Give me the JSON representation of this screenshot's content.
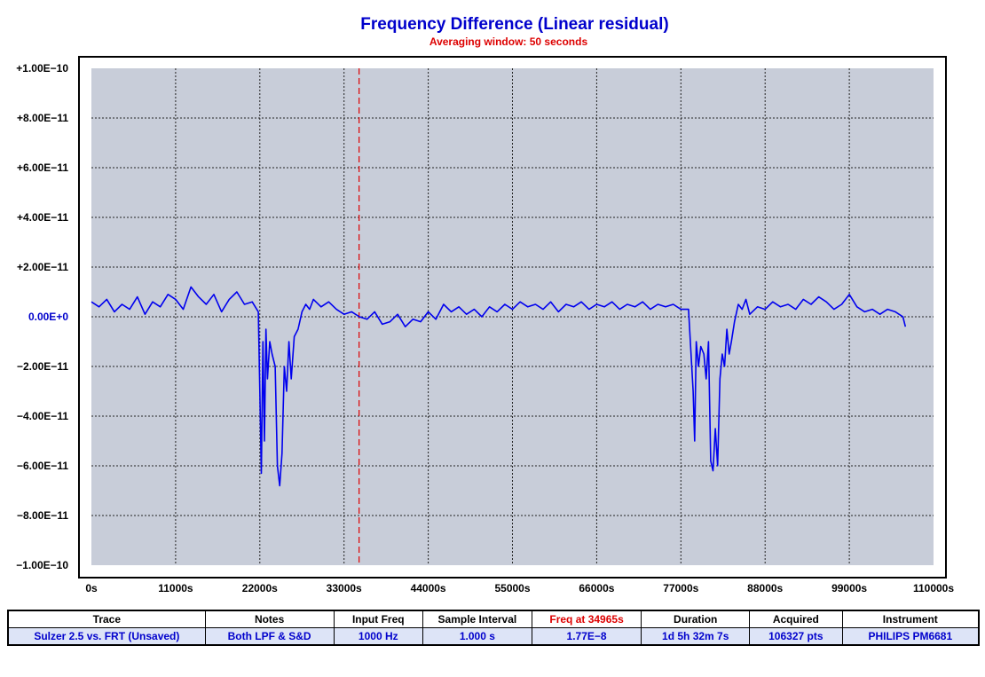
{
  "chart_data": {
    "type": "line",
    "title": "Frequency Difference (Linear residual)",
    "subtitle": "Averaging window: 50 seconds",
    "xlim": [
      0,
      110000
    ],
    "ylim": [
      -1e-10,
      1e-10
    ],
    "x_ticks": [
      0,
      11000,
      22000,
      33000,
      44000,
      55000,
      66000,
      77000,
      88000,
      99000,
      110000
    ],
    "x_tick_labels": [
      "0s",
      "11000s",
      "22000s",
      "33000s",
      "44000s",
      "55000s",
      "66000s",
      "77000s",
      "88000s",
      "99000s",
      "110000s"
    ],
    "y_ticks": [
      1e-10,
      8e-11,
      6e-11,
      4e-11,
      2e-11,
      0,
      -2e-11,
      -4e-11,
      -6e-11,
      -8e-11,
      -1e-10
    ],
    "y_tick_labels": [
      "+1.00E−10",
      "+8.00E−11",
      "+6.00E−11",
      "+4.00E−11",
      "+2.00E−11",
      "0.00E+0",
      "−2.00E−11",
      "−4.00E−11",
      "−6.00E−11",
      "−8.00E−11",
      "−1.00E−10"
    ],
    "grid": true,
    "cursor_x": 34965,
    "series": [
      {
        "color": "#0000ee",
        "x": [
          0,
          1000,
          2000,
          3000,
          4000,
          5000,
          6000,
          7000,
          8000,
          9000,
          10000,
          11000,
          12000,
          13000,
          14000,
          15000,
          16000,
          17000,
          18000,
          19000,
          20000,
          21000,
          21800,
          22000,
          22200,
          22400,
          22600,
          22800,
          23000,
          23300,
          23600,
          24000,
          24300,
          24600,
          24900,
          25200,
          25500,
          25800,
          26100,
          26500,
          27000,
          27500,
          28000,
          28500,
          29000,
          30000,
          31000,
          32000,
          33000,
          34000,
          35000,
          36000,
          37000,
          38000,
          39000,
          40000,
          41000,
          42000,
          43000,
          44000,
          45000,
          46000,
          47000,
          48000,
          49000,
          50000,
          51000,
          52000,
          53000,
          54000,
          55000,
          56000,
          57000,
          58000,
          59000,
          60000,
          61000,
          62000,
          63000,
          64000,
          65000,
          66000,
          67000,
          68000,
          69000,
          70000,
          71000,
          72000,
          73000,
          74000,
          75000,
          76000,
          77000,
          78000,
          78600,
          78800,
          79000,
          79300,
          79600,
          80000,
          80300,
          80600,
          80900,
          81200,
          81500,
          81800,
          82100,
          82400,
          82700,
          83000,
          83300,
          83600,
          84000,
          84500,
          85000,
          85500,
          86000,
          87000,
          88000,
          89000,
          90000,
          91000,
          92000,
          93000,
          94000,
          95000,
          96000,
          97000,
          98000,
          99000,
          100000,
          101000,
          102000,
          103000,
          104000,
          105000,
          106000,
          106327
        ],
        "values": [
          6e-12,
          4e-12,
          7e-12,
          2e-12,
          5e-12,
          3e-12,
          8e-12,
          1e-12,
          6e-12,
          4e-12,
          9e-12,
          7e-12,
          3e-12,
          1.2e-11,
          8e-12,
          5e-12,
          9e-12,
          2e-12,
          7e-12,
          1e-11,
          5e-12,
          6e-12,
          2e-12,
          -3e-11,
          -6.3e-11,
          -1e-11,
          -5e-11,
          -5e-12,
          -2.5e-11,
          -1e-11,
          -1.5e-11,
          -2e-11,
          -6e-11,
          -6.8e-11,
          -5.5e-11,
          -2e-11,
          -3e-11,
          -1e-11,
          -2.5e-11,
          -8e-12,
          -5e-12,
          2e-12,
          5e-12,
          3e-12,
          7e-12,
          4e-12,
          6e-12,
          3e-12,
          1e-12,
          2e-12,
          0.0,
          -1e-12,
          2e-12,
          -3e-12,
          -2e-12,
          1e-12,
          -4e-12,
          -1e-12,
          -2e-12,
          2e-12,
          -1e-12,
          5e-12,
          2e-12,
          4e-12,
          1e-12,
          3e-12,
          0.0,
          4e-12,
          2e-12,
          5e-12,
          3e-12,
          6e-12,
          4e-12,
          5e-12,
          3e-12,
          6e-12,
          2e-12,
          5e-12,
          4e-12,
          6e-12,
          3e-12,
          5e-12,
          4e-12,
          6e-12,
          3e-12,
          5e-12,
          4e-12,
          6e-12,
          3e-12,
          5e-12,
          4e-12,
          5e-12,
          3e-12,
          3e-12,
          -3e-11,
          -5e-11,
          -1e-11,
          -2e-11,
          -1.2e-11,
          -1.5e-11,
          -2.5e-11,
          -1e-11,
          -5.8e-11,
          -6.2e-11,
          -4.5e-11,
          -6e-11,
          -2.5e-11,
          -1.5e-11,
          -2e-11,
          -5e-12,
          -1.5e-11,
          -1e-11,
          -2e-12,
          5e-12,
          3e-12,
          7e-12,
          1e-12,
          4e-12,
          3e-12,
          6e-12,
          4e-12,
          5e-12,
          3e-12,
          7e-12,
          5e-12,
          8e-12,
          6e-12,
          3e-12,
          5e-12,
          9e-12,
          4e-12,
          2e-12,
          3e-12,
          1e-12,
          3e-12,
          2e-12,
          0.0,
          -4e-12
        ]
      }
    ]
  },
  "table": {
    "headers": [
      "Trace",
      "Notes",
      "Input Freq",
      "Sample Interval",
      "Freq at 34965s",
      "Duration",
      "Acquired",
      "Instrument"
    ],
    "values": [
      "Sulzer 2.5 vs. FRT (Unsaved)",
      "Both LPF & S&D",
      "1000 Hz",
      "1.000 s",
      "1.77E−8",
      "1d 5h 32m 7s",
      "106327 pts",
      "PHILIPS  PM6681"
    ]
  },
  "colors": {
    "plot_background": "#c8cdd9",
    "trace": "#0000ee",
    "cursor": "#dd0000",
    "title": "#0000cc",
    "subtitle": "#dd0000"
  }
}
